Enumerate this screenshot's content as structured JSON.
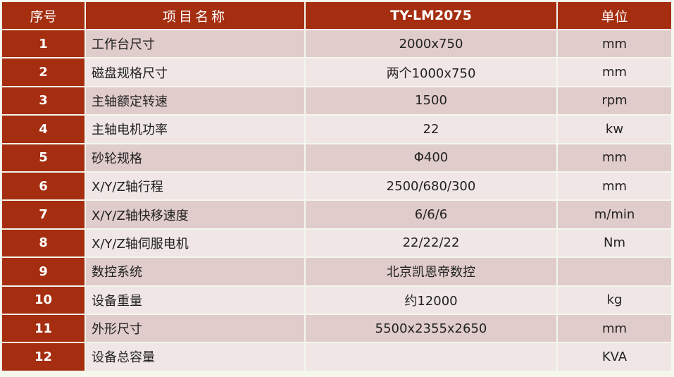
{
  "header": {
    "index": "序号",
    "item": "项目名称",
    "model": "TY-LM2075",
    "unit": "单位"
  },
  "rows": [
    {
      "no": "1",
      "name": "工作台尺寸",
      "value": "2000x750",
      "unit": "mm"
    },
    {
      "no": "2",
      "name": "磁盘规格尺寸",
      "value": "两个1000x750",
      "unit": "mm"
    },
    {
      "no": "3",
      "name": "主轴额定转速",
      "value": "1500",
      "unit": "rpm"
    },
    {
      "no": "4",
      "name": "主轴电机功率",
      "value": "22",
      "unit": "kw"
    },
    {
      "no": "5",
      "name": "砂轮规格",
      "value": "Φ400",
      "unit": "mm"
    },
    {
      "no": "6",
      "name": "X/Y/Z轴行程",
      "value": "2500/680/300",
      "unit": "mm"
    },
    {
      "no": "7",
      "name": "X/Y/Z轴快移速度",
      "value": "6/6/6",
      "unit": "m/min"
    },
    {
      "no": "8",
      "name": "X/Y/Z轴伺服电机",
      "value": "22/22/22",
      "unit": "Nm"
    },
    {
      "no": "9",
      "name": "数控系统",
      "value": "北京凯恩帝数控",
      "unit": ""
    },
    {
      "no": "10",
      "name": "设备重量",
      "value": "约12000",
      "unit": "kg"
    },
    {
      "no": "11",
      "name": "外形尺寸",
      "value": "5500x2355x2650",
      "unit": "mm"
    },
    {
      "no": "12",
      "name": "设备总容量",
      "value": "",
      "unit": "KVA"
    }
  ],
  "colors": {
    "header": "#a52d10",
    "row_odd": "#e0cccb",
    "row_even": "#f0e6e6"
  }
}
